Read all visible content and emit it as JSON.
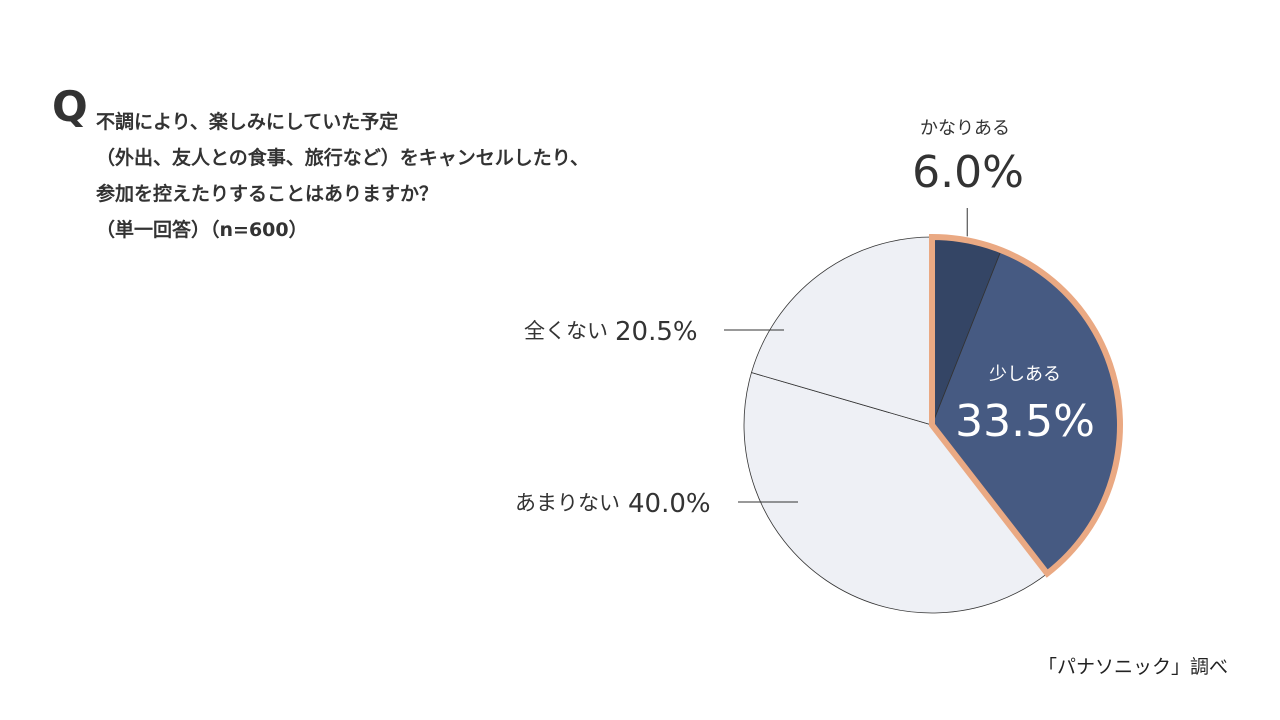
{
  "question": {
    "mark": "Q",
    "lines": [
      "不調により、楽しみにしていた予定",
      "（外出、友人との食事、旅行など）をキャンセルしたり、",
      "参加を控えたりすることはありますか？",
      "（単一回答）（n=600）"
    ]
  },
  "chart_data": {
    "type": "pie",
    "start": "12 o'clock, clockwise",
    "slices": [
      {
        "label": "かなりある",
        "value": 6.0,
        "value_text": "6.0%",
        "color": "#344565",
        "label_position": "outside-top"
      },
      {
        "label": "少しある",
        "value": 33.5,
        "value_text": "33.5%",
        "color": "#465a82",
        "label_position": "inside"
      },
      {
        "label": "あまりない",
        "value": 40.0,
        "value_text": "40.0%",
        "color": "#eef0f5",
        "label_position": "outside-left"
      },
      {
        "label": "全くない",
        "value": 20.5,
        "value_text": "20.5%",
        "color": "#eef0f5",
        "label_position": "outside-left"
      }
    ],
    "highlight": {
      "slices": [
        "かなりある",
        "少しある"
      ],
      "outline_color": "#eaa983"
    },
    "slice_border_color": "#333333"
  },
  "source": "「パナソニック」調べ"
}
